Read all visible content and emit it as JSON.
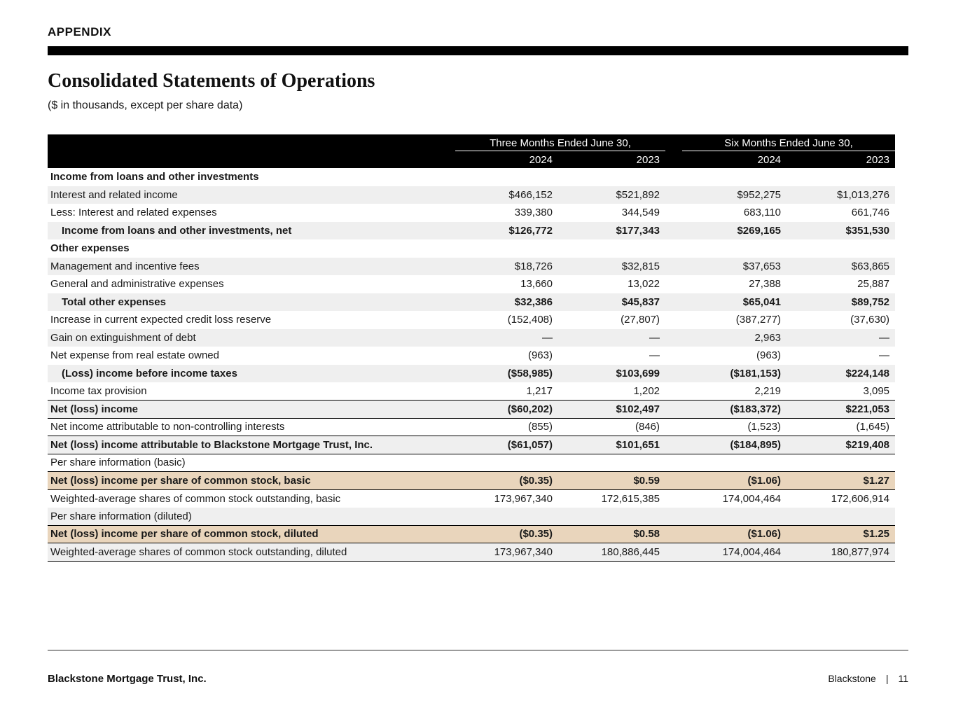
{
  "page": {
    "appendix_label": "APPENDIX",
    "title": "Consolidated Statements of Operations",
    "subtitle": "($ in thousands, except per share data)"
  },
  "colors": {
    "header_black": "#000000",
    "stripe_gray": "#efefef",
    "highlight_tan": "#e9d5bc"
  },
  "table": {
    "col_groups": [
      {
        "label": "Three Months Ended June 30,"
      },
      {
        "label": "Six Months Ended June 30,"
      }
    ],
    "year_headers": [
      "2024",
      "2023",
      "2024",
      "2023"
    ],
    "rows": [
      {
        "label": "Income from loans and other investments",
        "values": [
          "",
          "",
          "",
          ""
        ],
        "bold": true,
        "indent": false,
        "shade": "white",
        "border_top": false,
        "border_bottom": false
      },
      {
        "label": "Interest and related income",
        "values": [
          "$466,152",
          "$521,892",
          "$952,275",
          "$1,013,276"
        ],
        "bold": false,
        "indent": false,
        "shade": "gray",
        "border_top": false,
        "border_bottom": false
      },
      {
        "label": "Less: Interest and related expenses",
        "values": [
          "339,380",
          "344,549",
          "683,110",
          "661,746"
        ],
        "bold": false,
        "indent": false,
        "shade": "white",
        "border_top": false,
        "border_bottom": false
      },
      {
        "label": "Income from loans and other investments, net",
        "values": [
          "$126,772",
          "$177,343",
          "$269,165",
          "$351,530"
        ],
        "bold": true,
        "indent": true,
        "shade": "gray",
        "border_top": false,
        "border_bottom": false
      },
      {
        "label": "Other expenses",
        "values": [
          "",
          "",
          "",
          ""
        ],
        "bold": true,
        "indent": false,
        "shade": "white",
        "border_top": false,
        "border_bottom": false
      },
      {
        "label": "Management and incentive fees",
        "values": [
          "$18,726",
          "$32,815",
          "$37,653",
          "$63,865"
        ],
        "bold": false,
        "indent": false,
        "shade": "gray",
        "border_top": false,
        "border_bottom": false
      },
      {
        "label": "General and administrative expenses",
        "values": [
          "13,660",
          "13,022",
          "27,388",
          "25,887"
        ],
        "bold": false,
        "indent": false,
        "shade": "white",
        "border_top": false,
        "border_bottom": false
      },
      {
        "label": "Total other expenses",
        "values": [
          "$32,386",
          "$45,837",
          "$65,041",
          "$89,752"
        ],
        "bold": true,
        "indent": true,
        "shade": "gray",
        "border_top": false,
        "border_bottom": false
      },
      {
        "label": "Increase in current expected credit loss reserve",
        "values": [
          "(152,408)",
          "(27,807)",
          "(387,277)",
          "(37,630)"
        ],
        "bold": false,
        "indent": false,
        "shade": "white",
        "border_top": false,
        "border_bottom": false
      },
      {
        "label": "Gain on extinguishment of debt",
        "values": [
          "—",
          "—",
          "2,963",
          "—"
        ],
        "bold": false,
        "indent": false,
        "shade": "gray",
        "border_top": false,
        "border_bottom": false
      },
      {
        "label": "Net expense from real estate owned",
        "values": [
          "(963)",
          "—",
          "(963)",
          "—"
        ],
        "bold": false,
        "indent": false,
        "shade": "white",
        "border_top": false,
        "border_bottom": false
      },
      {
        "label": "(Loss) income before income taxes",
        "values": [
          "($58,985)",
          "$103,699",
          "($181,153)",
          "$224,148"
        ],
        "bold": true,
        "indent": true,
        "shade": "gray",
        "border_top": false,
        "border_bottom": false
      },
      {
        "label": "Income tax provision",
        "values": [
          "1,217",
          "1,202",
          "2,219",
          "3,095"
        ],
        "bold": false,
        "indent": false,
        "shade": "white",
        "border_top": false,
        "border_bottom": false
      },
      {
        "label": "Net (loss) income",
        "values": [
          "($60,202)",
          "$102,497",
          "($183,372)",
          "$221,053"
        ],
        "bold": true,
        "indent": false,
        "shade": "gray",
        "border_top": true,
        "border_bottom": true
      },
      {
        "label": "Net income attributable to non-controlling interests",
        "values": [
          "(855)",
          "(846)",
          "(1,523)",
          "(1,645)"
        ],
        "bold": false,
        "indent": false,
        "shade": "white",
        "border_top": false,
        "border_bottom": false
      },
      {
        "label": "Net (loss) income attributable to Blackstone Mortgage Trust, Inc.",
        "values": [
          "($61,057)",
          "$101,651",
          "($184,895)",
          "$219,408"
        ],
        "bold": true,
        "indent": false,
        "shade": "gray",
        "border_top": true,
        "border_bottom": true
      },
      {
        "label": "Per share information (basic)",
        "values": [
          "",
          "",
          "",
          ""
        ],
        "bold": false,
        "indent": false,
        "shade": "white",
        "border_top": false,
        "border_bottom": false
      },
      {
        "label": "Net (loss) income per share of common stock, basic",
        "values": [
          "($0.35)",
          "$0.59",
          "($1.06)",
          "$1.27"
        ],
        "bold": true,
        "indent": false,
        "shade": "tan",
        "border_top": true,
        "border_bottom": true
      },
      {
        "label": "Weighted-average shares of common stock outstanding, basic",
        "values": [
          "173,967,340",
          "172,615,385",
          "174,004,464",
          "172,606,914"
        ],
        "bold": false,
        "indent": false,
        "shade": "white",
        "border_top": false,
        "border_bottom": false
      },
      {
        "label": "Per share information (diluted)",
        "values": [
          "",
          "",
          "",
          ""
        ],
        "bold": false,
        "indent": false,
        "shade": "gray",
        "border_top": false,
        "border_bottom": false
      },
      {
        "label": "Net (loss) income per share of common stock, diluted",
        "values": [
          "($0.35)",
          "$0.58",
          "($1.06)",
          "$1.25"
        ],
        "bold": true,
        "indent": false,
        "shade": "tan",
        "border_top": true,
        "border_bottom": true
      },
      {
        "label": "Weighted-average shares of common stock outstanding, diluted",
        "values": [
          "173,967,340",
          "180,886,445",
          "174,004,464",
          "180,877,974"
        ],
        "bold": false,
        "indent": false,
        "shade": "gray",
        "border_top": false,
        "border_bottom": true
      }
    ]
  },
  "footer": {
    "company": "Blackstone Mortgage Trust, Inc.",
    "brand": "Blackstone",
    "separator": "|",
    "page_number": "11"
  }
}
